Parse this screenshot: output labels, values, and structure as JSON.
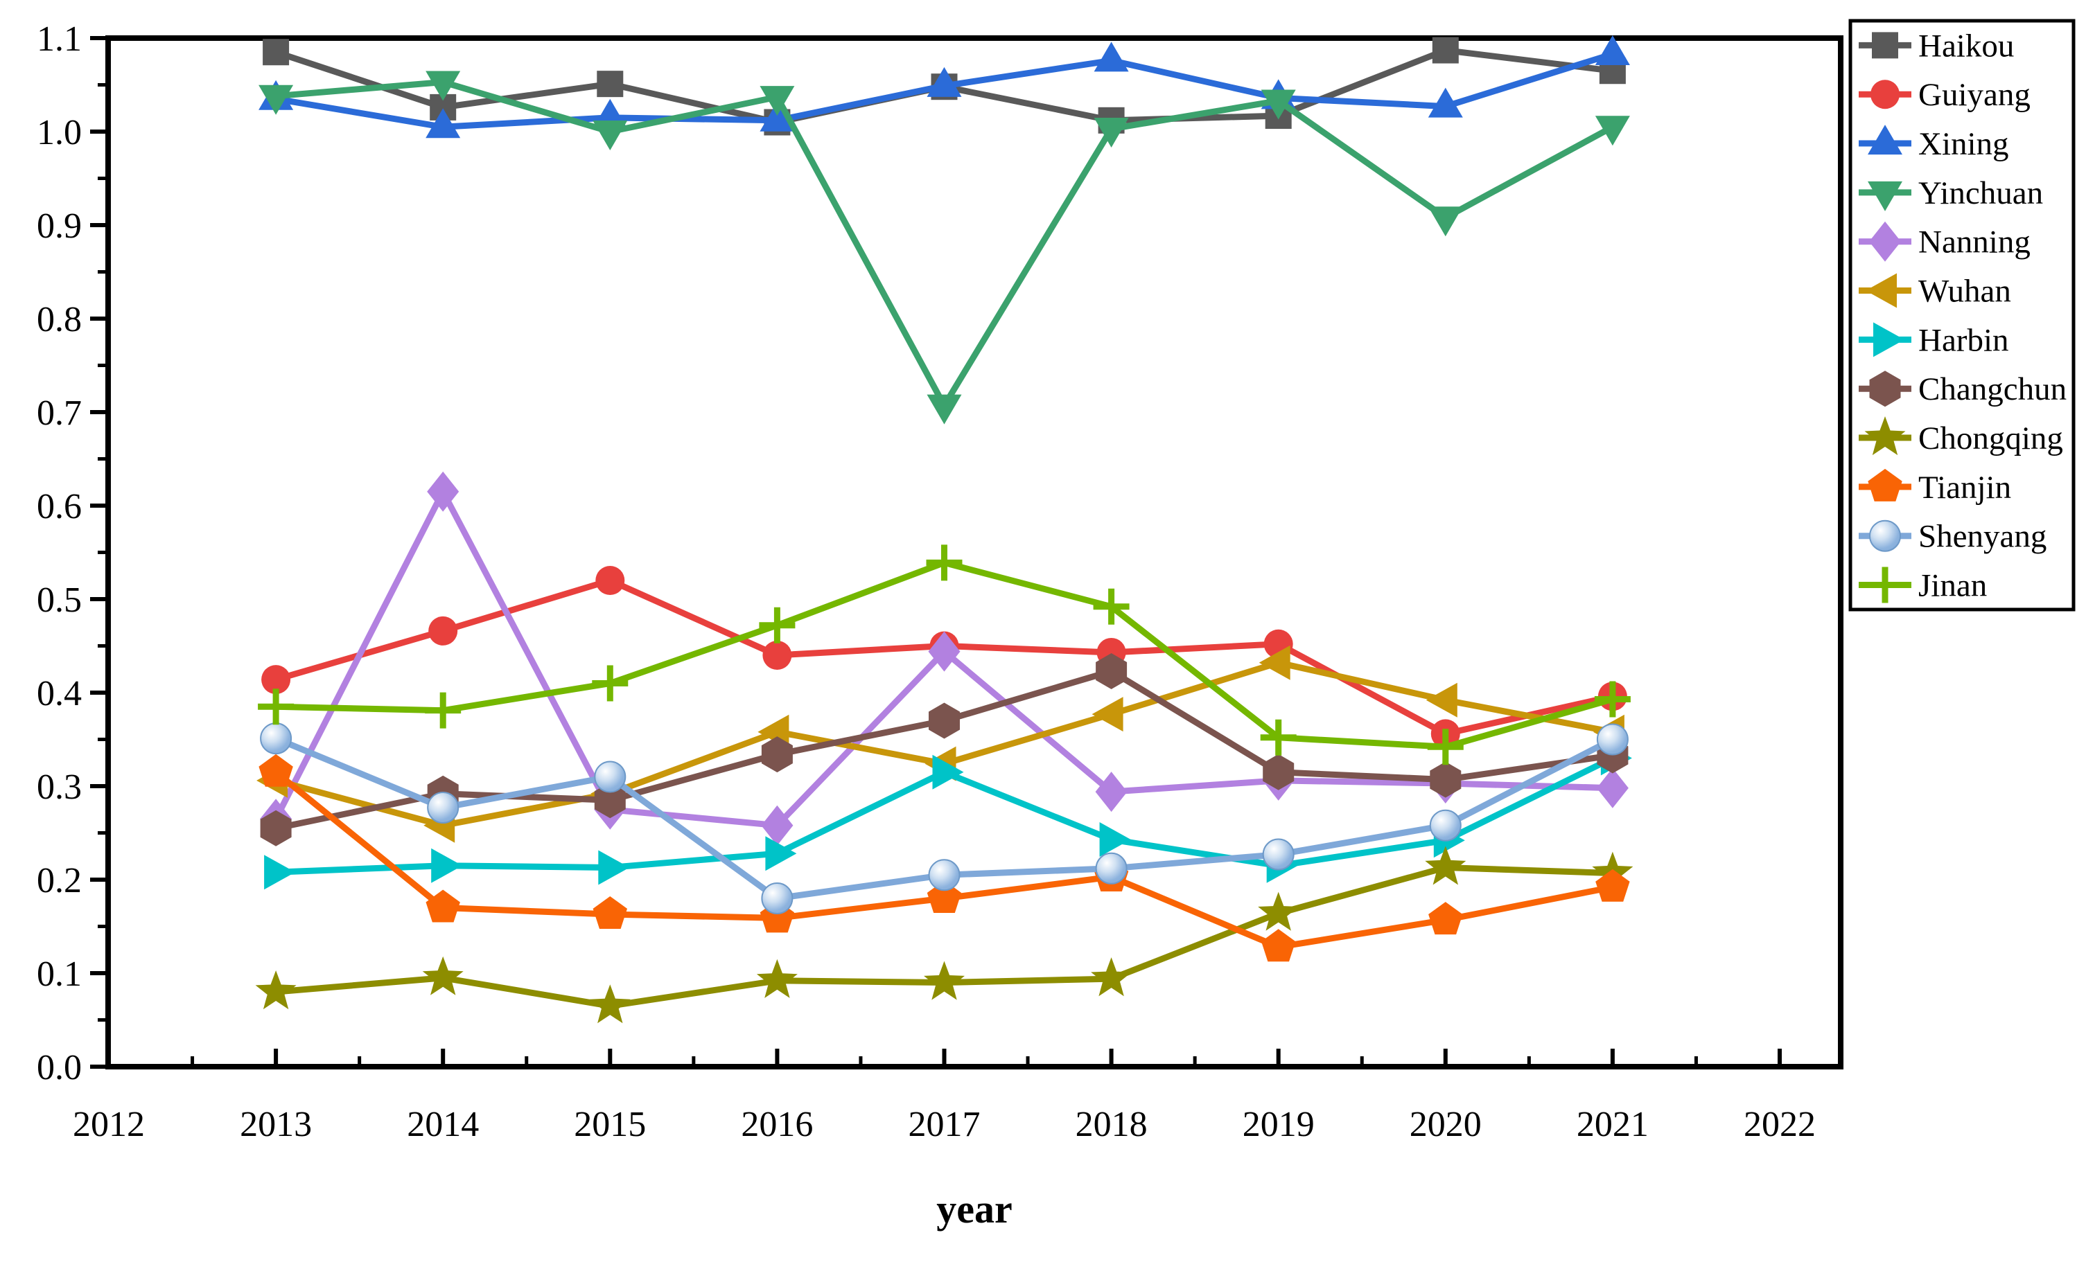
{
  "chart_data": {
    "type": "line",
    "title": "",
    "xlabel": "year",
    "ylabel": "",
    "grid": false,
    "legend_position": "outside-right",
    "frame_color": "#000000",
    "xlim": [
      2012,
      2022.37
    ],
    "ylim": [
      0.0,
      1.1
    ],
    "x": [
      2013,
      2014,
      2015,
      2016,
      2017,
      2018,
      2019,
      2020,
      2021
    ],
    "x_ticks": [
      2012,
      2013,
      2014,
      2015,
      2016,
      2017,
      2018,
      2019,
      2020,
      2021,
      2022
    ],
    "x_tick_labels": [
      "2012",
      "2013",
      "2014",
      "2015",
      "2016",
      "2017",
      "2018",
      "2019",
      "2020",
      "2021",
      "2022"
    ],
    "y_ticks": [
      0.0,
      0.1,
      0.2,
      0.3,
      0.4,
      0.5,
      0.6,
      0.7,
      0.8,
      0.9,
      1.0,
      1.1
    ],
    "y_tick_labels": [
      "0.0",
      "0.1",
      "0.2",
      "0.3",
      "0.4",
      "0.5",
      "0.6",
      "0.7",
      "0.8",
      "0.9",
      "1.0",
      "1.1"
    ],
    "series": [
      {
        "name": "Haikou",
        "color": "#595959",
        "marker": "square",
        "values": [
          1.085,
          1.026,
          1.051,
          1.01,
          1.048,
          1.012,
          1.017,
          1.087,
          1.065
        ]
      },
      {
        "name": "Guiyang",
        "color": "#e8403d",
        "marker": "circle",
        "values": [
          0.414,
          0.466,
          0.52,
          0.44,
          0.45,
          0.443,
          0.452,
          0.356,
          0.396
        ]
      },
      {
        "name": "Xining",
        "color": "#2b6bd8",
        "marker": "triangle-up",
        "values": [
          1.035,
          1.005,
          1.015,
          1.012,
          1.049,
          1.076,
          1.036,
          1.027,
          1.083
        ]
      },
      {
        "name": "Yinchuan",
        "color": "#3ba26d",
        "marker": "triangle-down",
        "values": [
          1.038,
          1.053,
          1.0,
          1.037,
          0.707,
          1.003,
          1.033,
          0.908,
          1.005
        ]
      },
      {
        "name": "Nanning",
        "color": "#b281e0",
        "marker": "diamond",
        "values": [
          0.265,
          0.615,
          0.275,
          0.258,
          0.444,
          0.294,
          0.306,
          0.303,
          0.298
        ]
      },
      {
        "name": "Wuhan",
        "color": "#c8960a",
        "marker": "triangle-left",
        "values": [
          0.306,
          0.258,
          0.292,
          0.358,
          0.324,
          0.377,
          0.432,
          0.392,
          0.358
        ]
      },
      {
        "name": "Harbin",
        "color": "#00c3c8",
        "marker": "triangle-right",
        "values": [
          0.208,
          0.215,
          0.213,
          0.228,
          0.315,
          0.243,
          0.215,
          0.242,
          0.33
        ]
      },
      {
        "name": "Changchun",
        "color": "#7b544e",
        "marker": "hexagon",
        "values": [
          0.255,
          0.292,
          0.285,
          0.334,
          0.37,
          0.423,
          0.315,
          0.307,
          0.333
        ]
      },
      {
        "name": "Chongqing",
        "color": "#8d8d00",
        "marker": "star",
        "values": [
          0.08,
          0.095,
          0.065,
          0.092,
          0.09,
          0.094,
          0.164,
          0.213,
          0.207
        ]
      },
      {
        "name": "Tianjin",
        "color": "#f96405",
        "marker": "pentagon",
        "values": [
          0.315,
          0.17,
          0.163,
          0.159,
          0.18,
          0.203,
          0.128,
          0.157,
          0.192
        ]
      },
      {
        "name": "Shenyang",
        "color": "#7fa8d9",
        "marker": "sphere",
        "values": [
          0.351,
          0.277,
          0.31,
          0.18,
          0.205,
          0.212,
          0.227,
          0.258,
          0.35
        ]
      },
      {
        "name": "Jinan",
        "color": "#74b700",
        "marker": "plus",
        "values": [
          0.385,
          0.381,
          0.41,
          0.472,
          0.539,
          0.492,
          0.352,
          0.342,
          0.393
        ]
      }
    ]
  }
}
